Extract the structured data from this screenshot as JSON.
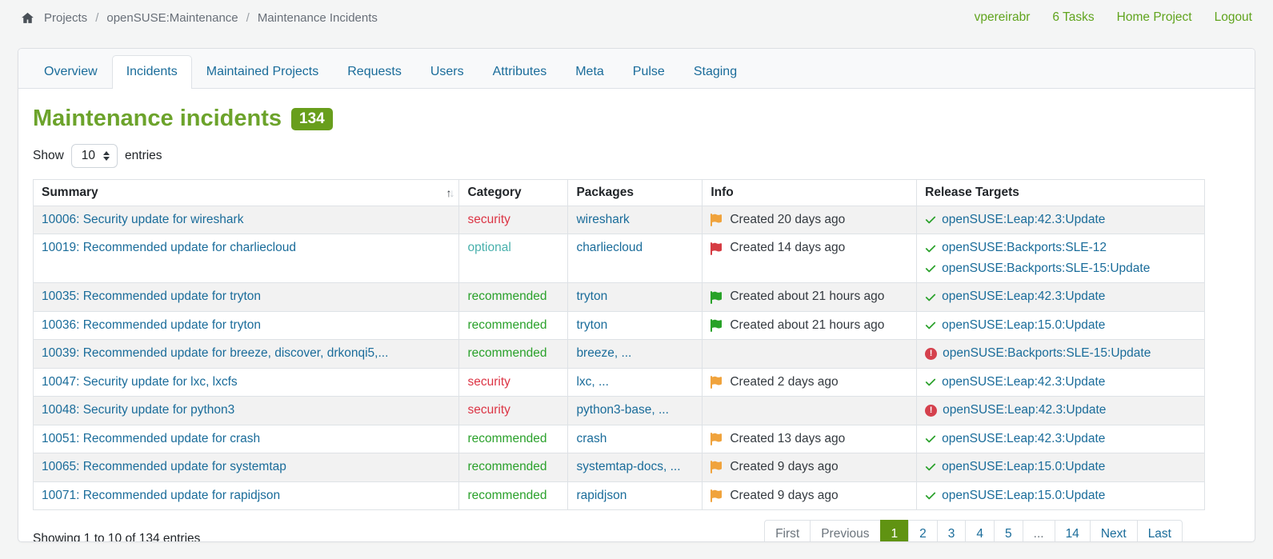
{
  "navbar": {
    "breadcrumb": {
      "items": [
        "Projects",
        "openSUSE:Maintenance",
        "Maintenance Incidents"
      ],
      "separator": "/"
    },
    "links": [
      "vpereirabr",
      "6 Tasks",
      "Home Project",
      "Logout"
    ]
  },
  "tabs": [
    {
      "label": "Overview",
      "active": false
    },
    {
      "label": "Incidents",
      "active": true
    },
    {
      "label": "Maintained Projects",
      "active": false
    },
    {
      "label": "Requests",
      "active": false
    },
    {
      "label": "Users",
      "active": false
    },
    {
      "label": "Attributes",
      "active": false
    },
    {
      "label": "Meta",
      "active": false
    },
    {
      "label": "Pulse",
      "active": false
    },
    {
      "label": "Staging",
      "active": false
    }
  ],
  "page": {
    "title": "Maintenance incidents",
    "count_badge": "134",
    "show_label": "Show",
    "page_size": "10",
    "entries_label": "entries"
  },
  "table": {
    "headers": [
      "Summary",
      "Category",
      "Packages",
      "Info",
      "Release Targets"
    ],
    "sorted_column": "Summary",
    "rows": [
      {
        "summary": "10006: Security update for wireshark",
        "category": "security",
        "packages": "wireshark",
        "flag": "orange",
        "info": "Created 20 days ago",
        "targets": [
          {
            "icon": "check",
            "label": "openSUSE:Leap:42.3:Update"
          }
        ]
      },
      {
        "summary": "10019: Recommended update for charliecloud",
        "category": "optional",
        "packages": "charliecloud",
        "flag": "red",
        "info": "Created 14 days ago",
        "targets": [
          {
            "icon": "check",
            "label": "openSUSE:Backports:SLE-12"
          },
          {
            "icon": "check",
            "label": "openSUSE:Backports:SLE-15:Update"
          }
        ]
      },
      {
        "summary": "10035: Recommended update for tryton",
        "category": "recommended",
        "packages": "tryton",
        "flag": "green",
        "info": "Created about 21 hours ago",
        "targets": [
          {
            "icon": "check",
            "label": "openSUSE:Leap:42.3:Update"
          }
        ]
      },
      {
        "summary": "10036: Recommended update for tryton",
        "category": "recommended",
        "packages": "tryton",
        "flag": "green",
        "info": "Created about 21 hours ago",
        "targets": [
          {
            "icon": "check",
            "label": "openSUSE:Leap:15.0:Update"
          }
        ]
      },
      {
        "summary": "10039: Recommended update for breeze, discover, drkonqi5,...",
        "category": "recommended",
        "packages": "breeze, ...",
        "flag": null,
        "info": "",
        "targets": [
          {
            "icon": "error",
            "label": "openSUSE:Backports:SLE-15:Update"
          }
        ]
      },
      {
        "summary": "10047: Security update for lxc, lxcfs",
        "category": "security",
        "packages": "lxc, ...",
        "flag": "orange",
        "info": "Created 2 days ago",
        "targets": [
          {
            "icon": "check",
            "label": "openSUSE:Leap:42.3:Update"
          }
        ]
      },
      {
        "summary": "10048: Security update for python3",
        "category": "security",
        "packages": "python3-base, ...",
        "flag": null,
        "info": "",
        "targets": [
          {
            "icon": "error",
            "label": "openSUSE:Leap:42.3:Update"
          }
        ]
      },
      {
        "summary": "10051: Recommended update for crash",
        "category": "recommended",
        "packages": "crash",
        "flag": "orange",
        "info": "Created 13 days ago",
        "targets": [
          {
            "icon": "check",
            "label": "openSUSE:Leap:42.3:Update"
          }
        ]
      },
      {
        "summary": "10065: Recommended update for systemtap",
        "category": "recommended",
        "packages": "systemtap-docs, ...",
        "flag": "orange",
        "info": "Created 9 days ago",
        "targets": [
          {
            "icon": "check",
            "label": "openSUSE:Leap:15.0:Update"
          }
        ]
      },
      {
        "summary": "10071: Recommended update for rapidjson",
        "category": "recommended",
        "packages": "rapidjson",
        "flag": "orange",
        "info": "Created 9 days ago",
        "targets": [
          {
            "icon": "check",
            "label": "openSUSE:Leap:15.0:Update"
          }
        ]
      }
    ]
  },
  "footer": {
    "showing_text": "Showing 1 to 10 of 134 entries",
    "pagination": [
      {
        "label": "First",
        "state": "disabled"
      },
      {
        "label": "Previous",
        "state": "disabled"
      },
      {
        "label": "1",
        "state": "active"
      },
      {
        "label": "2",
        "state": "link"
      },
      {
        "label": "3",
        "state": "link"
      },
      {
        "label": "4",
        "state": "link"
      },
      {
        "label": "5",
        "state": "link"
      },
      {
        "label": "...",
        "state": "disabled"
      },
      {
        "label": "14",
        "state": "link"
      },
      {
        "label": "Next",
        "state": "link"
      },
      {
        "label": "Last",
        "state": "link"
      }
    ]
  },
  "colors": {
    "brand_green_title": "#6ca32b",
    "badge_green": "#689e1c",
    "navbar_link_green": "#60a41e",
    "active_page_green": "#609312",
    "link_blue": "#1a6c9a",
    "security_red": "#dc3545",
    "optional_teal": "#48b0ac",
    "recommended_green": "#2aa12b",
    "flag_orange": "#f0a33c",
    "flag_red": "#d63c43",
    "flag_green": "#28a228",
    "check_green": "#2aa12b",
    "error_red": "#d5414d"
  },
  "icons": {
    "home": "home-icon",
    "sort": "sort-icon",
    "flag": "flag-icon",
    "check": "check-icon",
    "error": "exclamation-circle-icon",
    "select_arrows": "up-down-arrows-icon"
  }
}
